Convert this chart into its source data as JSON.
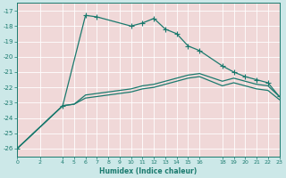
{
  "xlabel": "Humidex (Indice chaleur)",
  "background_color": "#cce8e8",
  "plot_background": "#f0d8d8",
  "grid_color": "#ffffff",
  "line_color": "#1a7a6e",
  "xlim": [
    0,
    23
  ],
  "ylim": [
    -26.5,
    -16.5
  ],
  "xticks": [
    0,
    2,
    4,
    5,
    6,
    7,
    8,
    9,
    10,
    11,
    12,
    13,
    14,
    15,
    16,
    18,
    19,
    20,
    21,
    22,
    23
  ],
  "yticks": [
    -17,
    -18,
    -19,
    -20,
    -21,
    -22,
    -23,
    -24,
    -25,
    -26
  ],
  "s1_x": [
    0,
    4,
    6,
    7,
    10,
    11,
    12,
    13,
    14,
    15,
    16,
    18,
    19,
    20,
    21,
    22,
    23
  ],
  "s1_y": [
    -26.0,
    -23.2,
    -17.3,
    -17.4,
    -18.0,
    -17.8,
    -17.5,
    -18.2,
    -18.5,
    -19.3,
    -19.6,
    -20.6,
    -21.0,
    -21.3,
    -21.5,
    -21.7,
    -22.6
  ],
  "s2_x": [
    0,
    4,
    5,
    6,
    7,
    8,
    9,
    10,
    11,
    12,
    13,
    14,
    15,
    16,
    18,
    19,
    20,
    21,
    22,
    23
  ],
  "s2_y": [
    -26.0,
    -23.2,
    -23.1,
    -22.5,
    -22.4,
    -22.3,
    -22.2,
    -22.1,
    -21.9,
    -21.8,
    -21.6,
    -21.4,
    -21.2,
    -21.1,
    -21.6,
    -21.4,
    -21.6,
    -21.8,
    -21.9,
    -22.6
  ],
  "s3_x": [
    0,
    4,
    5,
    6,
    7,
    8,
    9,
    10,
    11,
    12,
    13,
    14,
    15,
    16,
    18,
    19,
    20,
    21,
    22,
    23
  ],
  "s3_y": [
    -26.0,
    -23.2,
    -23.1,
    -22.7,
    -22.6,
    -22.5,
    -22.4,
    -22.3,
    -22.1,
    -22.0,
    -21.8,
    -21.6,
    -21.4,
    -21.3,
    -21.9,
    -21.7,
    -21.9,
    -22.1,
    -22.2,
    -22.8
  ]
}
